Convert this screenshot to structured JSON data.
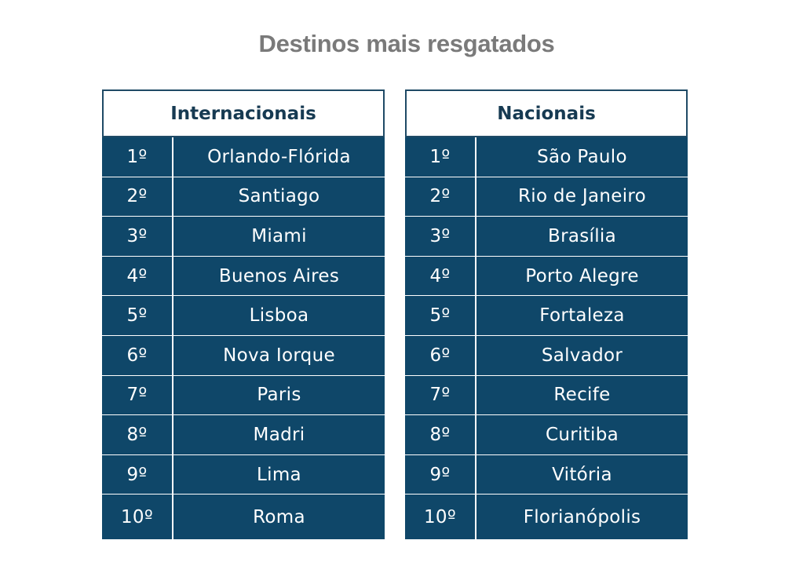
{
  "title": "Destinos mais resgatados",
  "international": {
    "header": "Internacionais",
    "rows": [
      {
        "rank": "1º",
        "city": "Orlando-Flórida"
      },
      {
        "rank": "2º",
        "city": "Santiago"
      },
      {
        "rank": "3º",
        "city": "Miami"
      },
      {
        "rank": "4º",
        "city": "Buenos Aires"
      },
      {
        "rank": "5º",
        "city": "Lisboa"
      },
      {
        "rank": "6º",
        "city": "Nova Iorque"
      },
      {
        "rank": "7º",
        "city": "Paris"
      },
      {
        "rank": "8º",
        "city": "Madri"
      },
      {
        "rank": "9º",
        "city": "Lima"
      },
      {
        "rank": "10º",
        "city": "Roma"
      }
    ]
  },
  "national": {
    "header": "Nacionais",
    "rows": [
      {
        "rank": "1º",
        "city": "São Paulo"
      },
      {
        "rank": "2º",
        "city": "Rio de Janeiro"
      },
      {
        "rank": "3º",
        "city": "Brasília"
      },
      {
        "rank": "4º",
        "city": "Porto Alegre"
      },
      {
        "rank": "5º",
        "city": "Fortaleza"
      },
      {
        "rank": "6º",
        "city": "Salvador"
      },
      {
        "rank": "7º",
        "city": "Recife"
      },
      {
        "rank": "8º",
        "city": "Curitiba"
      },
      {
        "rank": "9º",
        "city": "Vitória"
      },
      {
        "rank": "10º",
        "city": "Florianópolis"
      }
    ]
  },
  "colors": {
    "cell_background": "#0f4769",
    "header_text": "#163a52",
    "title_text": "#7a7a7a"
  }
}
